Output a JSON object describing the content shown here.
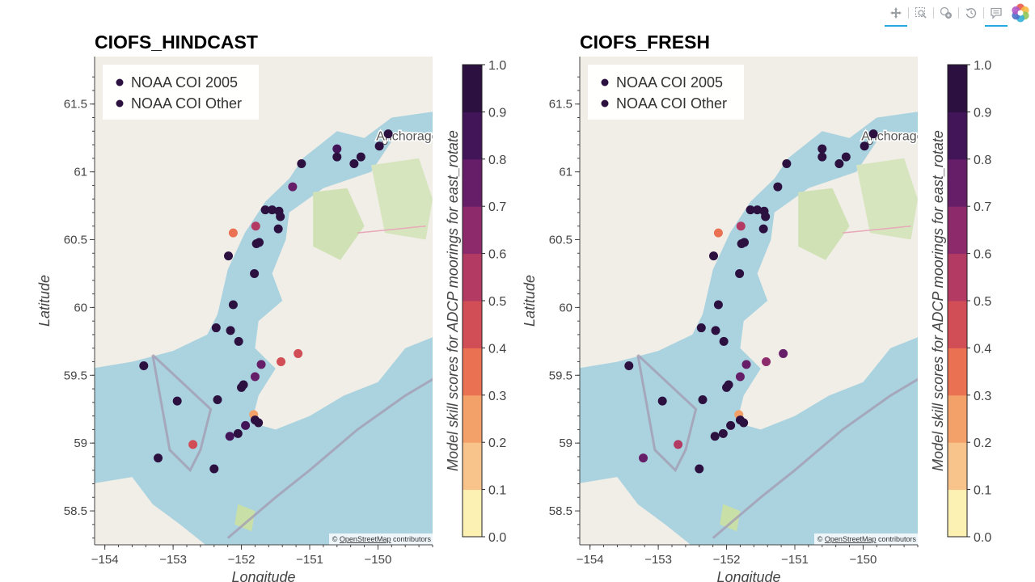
{
  "toolbar": {
    "tools": [
      {
        "name": "pan-tool",
        "icon": "pan-icon",
        "active": true
      },
      {
        "name": "box-zoom-tool",
        "icon": "box-zoom-icon",
        "active": false
      },
      {
        "name": "hover-tool",
        "icon": "hover-icon",
        "active": false
      },
      {
        "name": "reset-tool",
        "icon": "reset-icon",
        "active": false
      },
      {
        "name": "tooltip-tool",
        "icon": "comment-icon",
        "active": true
      }
    ],
    "logo_icon": "bokeh-logo-icon"
  },
  "colors": {
    "water": "#aad3df",
    "land": "#f1eee8",
    "axis": "#444444",
    "colormap": [
      "#fcf0b2",
      "#f8c48c",
      "#f4a069",
      "#ea7152",
      "#d14e56",
      "#b33b63",
      "#8d2a6b",
      "#661e68",
      "#421559",
      "#2b1040"
    ]
  },
  "attribution": {
    "prefix": "© ",
    "link": "OpenStreetMap",
    "suffix": " contributors"
  },
  "city_label": "Anchorage",
  "chart_data": [
    {
      "type": "scatter",
      "title": "CIOFS_HINDCAST",
      "xlabel": "Longitude",
      "ylabel": "Latitude",
      "xlim": [
        -154.15,
        -149.2
      ],
      "ylim": [
        58.25,
        61.85
      ],
      "xticks": [
        "−154",
        "−153",
        "−152",
        "−151",
        "−150"
      ],
      "yticks": [
        "58.5",
        "59",
        "59.5",
        "60",
        "60.5",
        "61",
        "61.5"
      ],
      "legend": {
        "position": "top-left",
        "entries": [
          "NOAA COI 2005",
          "NOAA COI Other"
        ]
      },
      "colorbar": {
        "label": "Model skill scores for ADCP moorings for east_rotate",
        "range": [
          0,
          1
        ],
        "ticks": [
          "0.0",
          "0.1",
          "0.2",
          "0.3",
          "0.4",
          "0.5",
          "0.6",
          "0.7",
          "0.8",
          "0.9",
          "1.0"
        ]
      },
      "points": [
        {
          "lon": -149.85,
          "lat": 61.28,
          "value": 0.95
        },
        {
          "lon": -149.98,
          "lat": 61.19,
          "value": 0.95
        },
        {
          "lon": -150.25,
          "lat": 61.11,
          "value": 0.95
        },
        {
          "lon": -150.35,
          "lat": 61.06,
          "value": 0.95
        },
        {
          "lon": -150.6,
          "lat": 61.17,
          "value": 0.8
        },
        {
          "lon": -150.6,
          "lat": 61.11,
          "value": 0.95
        },
        {
          "lon": -151.12,
          "lat": 61.06,
          "value": 0.95
        },
        {
          "lon": -151.25,
          "lat": 60.89,
          "value": 0.7
        },
        {
          "lon": -151.65,
          "lat": 60.72,
          "value": 0.95
        },
        {
          "lon": -151.55,
          "lat": 60.72,
          "value": 0.95
        },
        {
          "lon": -151.45,
          "lat": 60.71,
          "value": 0.95
        },
        {
          "lon": -151.43,
          "lat": 60.67,
          "value": 0.95
        },
        {
          "lon": -151.79,
          "lat": 60.6,
          "value": 0.55
        },
        {
          "lon": -151.46,
          "lat": 60.58,
          "value": 0.95
        },
        {
          "lon": -152.12,
          "lat": 60.55,
          "value": 0.3
        },
        {
          "lon": -151.74,
          "lat": 60.48,
          "value": 0.95
        },
        {
          "lon": -151.78,
          "lat": 60.47,
          "value": 0.95
        },
        {
          "lon": -152.19,
          "lat": 60.38,
          "value": 0.95
        },
        {
          "lon": -151.81,
          "lat": 60.25,
          "value": 0.95
        },
        {
          "lon": -152.12,
          "lat": 60.02,
          "value": 0.95
        },
        {
          "lon": -152.37,
          "lat": 59.85,
          "value": 0.95
        },
        {
          "lon": -152.16,
          "lat": 59.83,
          "value": 0.95
        },
        {
          "lon": -152.04,
          "lat": 59.75,
          "value": 0.95
        },
        {
          "lon": -151.17,
          "lat": 59.66,
          "value": 0.45
        },
        {
          "lon": -151.42,
          "lat": 59.6,
          "value": 0.4
        },
        {
          "lon": -151.71,
          "lat": 59.58,
          "value": 0.75
        },
        {
          "lon": -151.8,
          "lat": 59.49,
          "value": 0.75
        },
        {
          "lon": -153.43,
          "lat": 59.57,
          "value": 0.95
        },
        {
          "lon": -151.97,
          "lat": 59.43,
          "value": 0.95
        },
        {
          "lon": -152.0,
          "lat": 59.41,
          "value": 0.95
        },
        {
          "lon": -152.35,
          "lat": 59.32,
          "value": 0.95
        },
        {
          "lon": -152.94,
          "lat": 59.31,
          "value": 0.95
        },
        {
          "lon": -151.82,
          "lat": 59.21,
          "value": 0.25
        },
        {
          "lon": -151.8,
          "lat": 59.17,
          "value": 0.95
        },
        {
          "lon": -151.75,
          "lat": 59.15,
          "value": 0.95
        },
        {
          "lon": -151.94,
          "lat": 59.13,
          "value": 0.8
        },
        {
          "lon": -152.05,
          "lat": 59.07,
          "value": 0.95
        },
        {
          "lon": -152.17,
          "lat": 59.05,
          "value": 0.8
        },
        {
          "lon": -152.71,
          "lat": 58.99,
          "value": 0.45
        },
        {
          "lon": -153.22,
          "lat": 58.89,
          "value": 0.95
        },
        {
          "lon": -152.4,
          "lat": 58.81,
          "value": 0.95
        }
      ]
    },
    {
      "type": "scatter",
      "title": "CIOFS_FRESH",
      "xlabel": "Longitude",
      "ylabel": "Latitude",
      "xlim": [
        -154.15,
        -149.2
      ],
      "ylim": [
        58.25,
        61.85
      ],
      "xticks": [
        "−154",
        "−153",
        "−152",
        "−151",
        "−150"
      ],
      "yticks": [
        "58.5",
        "59",
        "59.5",
        "60",
        "60.5",
        "61",
        "61.5"
      ],
      "legend": {
        "position": "top-left",
        "entries": [
          "NOAA COI 2005",
          "NOAA COI Other"
        ]
      },
      "colorbar": {
        "label": "Model skill scores for ADCP moorings for east_rotate",
        "range": [
          0,
          1
        ],
        "ticks": [
          "0.0",
          "0.1",
          "0.2",
          "0.3",
          "0.4",
          "0.5",
          "0.6",
          "0.7",
          "0.8",
          "0.9",
          "1.0"
        ]
      },
      "points": [
        {
          "lon": -149.85,
          "lat": 61.28,
          "value": 0.95
        },
        {
          "lon": -149.98,
          "lat": 61.19,
          "value": 0.95
        },
        {
          "lon": -150.25,
          "lat": 61.11,
          "value": 0.95
        },
        {
          "lon": -150.35,
          "lat": 61.06,
          "value": 0.95
        },
        {
          "lon": -150.6,
          "lat": 61.17,
          "value": 0.95
        },
        {
          "lon": -150.6,
          "lat": 61.11,
          "value": 0.95
        },
        {
          "lon": -151.12,
          "lat": 61.06,
          "value": 0.95
        },
        {
          "lon": -151.25,
          "lat": 60.89,
          "value": 0.95
        },
        {
          "lon": -151.65,
          "lat": 60.72,
          "value": 0.95
        },
        {
          "lon": -151.55,
          "lat": 60.72,
          "value": 0.95
        },
        {
          "lon": -151.45,
          "lat": 60.71,
          "value": 0.95
        },
        {
          "lon": -151.43,
          "lat": 60.67,
          "value": 0.95
        },
        {
          "lon": -151.79,
          "lat": 60.6,
          "value": 0.55
        },
        {
          "lon": -151.46,
          "lat": 60.58,
          "value": 0.95
        },
        {
          "lon": -152.12,
          "lat": 60.55,
          "value": 0.3
        },
        {
          "lon": -151.74,
          "lat": 60.48,
          "value": 0.95
        },
        {
          "lon": -151.78,
          "lat": 60.47,
          "value": 0.95
        },
        {
          "lon": -152.19,
          "lat": 60.38,
          "value": 0.95
        },
        {
          "lon": -151.81,
          "lat": 60.25,
          "value": 0.95
        },
        {
          "lon": -152.12,
          "lat": 60.02,
          "value": 0.95
        },
        {
          "lon": -152.37,
          "lat": 59.85,
          "value": 0.95
        },
        {
          "lon": -152.16,
          "lat": 59.83,
          "value": 0.95
        },
        {
          "lon": -152.04,
          "lat": 59.75,
          "value": 0.95
        },
        {
          "lon": -151.17,
          "lat": 59.66,
          "value": 0.75
        },
        {
          "lon": -151.42,
          "lat": 59.6,
          "value": 0.65
        },
        {
          "lon": -151.71,
          "lat": 59.58,
          "value": 0.75
        },
        {
          "lon": -151.8,
          "lat": 59.49,
          "value": 0.75
        },
        {
          "lon": -153.43,
          "lat": 59.57,
          "value": 0.95
        },
        {
          "lon": -151.97,
          "lat": 59.43,
          "value": 0.95
        },
        {
          "lon": -152.0,
          "lat": 59.41,
          "value": 0.95
        },
        {
          "lon": -152.35,
          "lat": 59.32,
          "value": 0.95
        },
        {
          "lon": -152.94,
          "lat": 59.31,
          "value": 0.95
        },
        {
          "lon": -151.82,
          "lat": 59.21,
          "value": 0.25
        },
        {
          "lon": -151.8,
          "lat": 59.17,
          "value": 0.95
        },
        {
          "lon": -151.75,
          "lat": 59.15,
          "value": 0.95
        },
        {
          "lon": -151.94,
          "lat": 59.13,
          "value": 0.95
        },
        {
          "lon": -152.05,
          "lat": 59.07,
          "value": 0.95
        },
        {
          "lon": -152.17,
          "lat": 59.05,
          "value": 0.95
        },
        {
          "lon": -152.71,
          "lat": 58.99,
          "value": 0.55
        },
        {
          "lon": -153.22,
          "lat": 58.89,
          "value": 0.75
        },
        {
          "lon": -152.4,
          "lat": 58.81,
          "value": 0.95
        }
      ]
    }
  ]
}
